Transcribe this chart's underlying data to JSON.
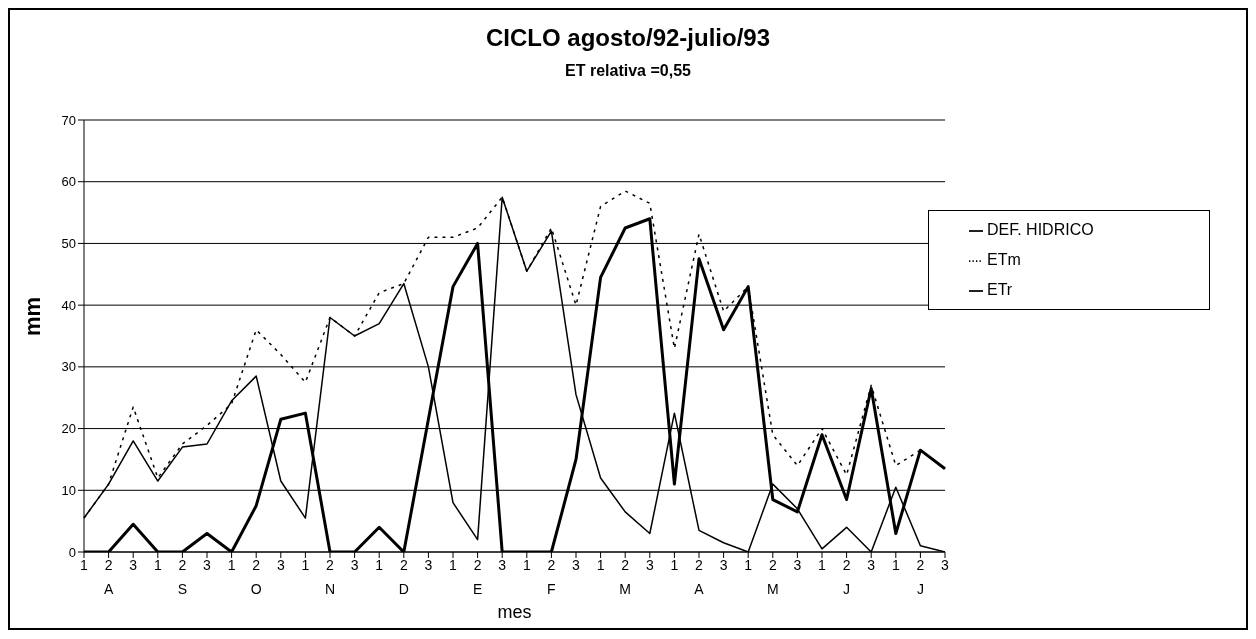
{
  "chart_data": {
    "type": "line",
    "title": "CICLO agosto/92-julio/93",
    "subtitle": "ET relativa =0,55",
    "xlabel": "mes",
    "ylabel": "mm",
    "categories": [
      "1",
      "2",
      "3",
      "1",
      "2",
      "3",
      "1",
      "2",
      "3",
      "1",
      "2",
      "3",
      "1",
      "2",
      "3",
      "1",
      "2",
      "3",
      "1",
      "2",
      "3",
      "1",
      "2",
      "3",
      "1",
      "2",
      "3",
      "1",
      "2",
      "3",
      "1",
      "2",
      "3",
      "1",
      "2",
      "3"
    ],
    "annotations": [
      "A",
      "S",
      "O",
      "N",
      "D",
      "E",
      "F",
      "M",
      "A",
      "M",
      "J",
      "J"
    ],
    "series": [
      {
        "name": "ETm",
        "color": "#000000",
        "line_style": "dotted",
        "values": [
          5.5,
          11,
          23.5,
          12,
          17.5,
          20.5,
          24,
          36,
          32,
          27.5,
          38,
          35,
          42,
          43.5,
          51,
          51,
          52.5,
          57.5,
          45.5,
          52.5,
          40,
          56,
          58.5,
          56.5,
          33,
          51.5,
          39,
          43,
          19,
          14,
          20,
          12.5,
          27,
          14,
          16.5,
          13.5
        ]
      },
      {
        "name": "ETr",
        "color": "#000000",
        "line_style": "solid",
        "values": [
          5.5,
          11,
          18,
          11.5,
          17,
          17.5,
          24.5,
          28.5,
          11.5,
          5.5,
          38,
          35,
          37,
          43.5,
          30,
          8,
          2,
          57.5,
          45.5,
          52,
          25.5,
          12,
          6.5,
          3,
          22.5,
          3.5,
          1.5,
          0,
          11,
          7,
          0.5,
          4,
          0,
          10.5,
          1,
          0
        ]
      },
      {
        "name": "DEF. HIDRICO",
        "color": "#000000",
        "line_style": "solid",
        "values": [
          0,
          0,
          4.5,
          0,
          0,
          3,
          0,
          7.5,
          21.5,
          22.5,
          0,
          0,
          4,
          0,
          21.5,
          43,
          50,
          0,
          0,
          0,
          15,
          44.5,
          52.5,
          54,
          11,
          47.5,
          36,
          43,
          8.5,
          6.5,
          19,
          8.5,
          26.5,
          3,
          16.5,
          13.5
        ]
      }
    ],
    "ylim": [
      0,
      70
    ],
    "yticks": [
      0,
      10,
      20,
      30,
      40,
      50,
      60,
      70
    ],
    "grid": "y",
    "legend": "top right",
    "marker": "none"
  }
}
